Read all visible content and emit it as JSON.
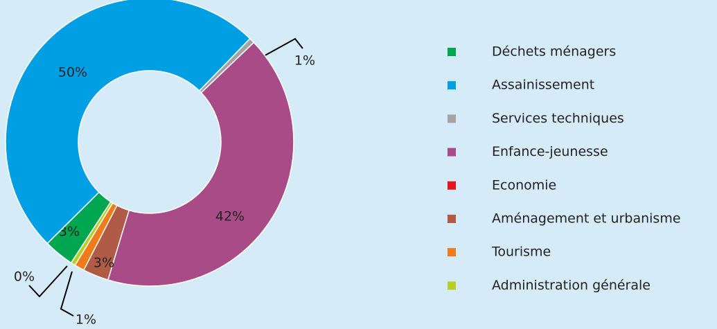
{
  "chart_data": {
    "type": "donut",
    "categories": [
      "Déchets ménagers",
      "Assainissement",
      "Services techniques",
      "Enfance-jeunesse",
      "Economie",
      "Aménagement et urbanisme",
      "Tourisme",
      "Administration générale"
    ],
    "values": [
      3.4,
      49.7,
      0.6,
      41.8,
      0,
      2.9,
      1.1,
      0.5
    ],
    "value_labels": [
      "3%",
      "50%",
      "1%",
      "42%",
      null,
      "3%",
      "1%",
      "0%"
    ],
    "colors": [
      "#00a650",
      "#009fe3",
      "#a3a3a3",
      "#a84b86",
      "#e3151e",
      "#b05b45",
      "#ef7b1b",
      "#b7cf24"
    ],
    "legend": "right"
  }
}
